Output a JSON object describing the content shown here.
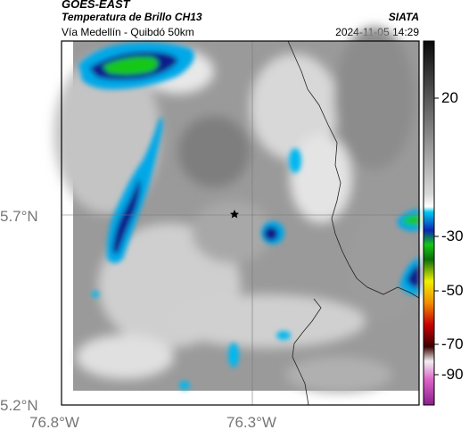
{
  "header": {
    "satellite": "GOES-EAST",
    "product": "Temperatura de Brillo CH13",
    "location": "Vía Medellín - Quibdó 50km",
    "agency": "SIATA",
    "datetime": "2024-11-05 14:29"
  },
  "axes": {
    "lat_labels": [
      "5.7°N",
      "5.2°N"
    ],
    "lon_labels": [
      "76.8°W",
      "76.3°W"
    ]
  },
  "colorbar": {
    "ticks": [
      "20",
      "-30",
      "-50",
      "-70",
      "-90"
    ]
  },
  "map": {
    "marker_icon": "star-icon",
    "colors": {
      "cold_blue": "#00a8e8",
      "deep_blue": "#0a1e8c",
      "green": "#14c814",
      "frame": "#000000"
    }
  }
}
